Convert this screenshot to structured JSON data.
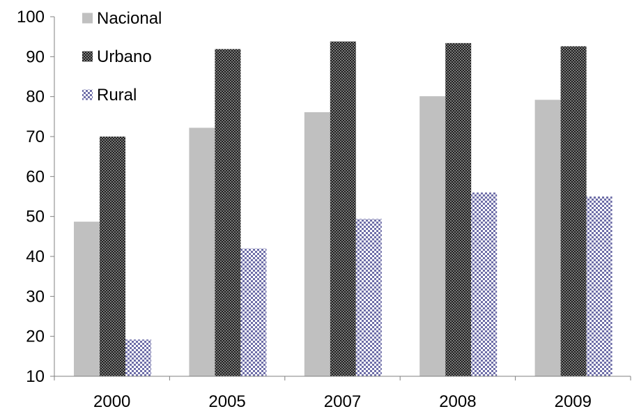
{
  "chart_data": {
    "type": "bar",
    "title": "",
    "xlabel": "",
    "ylabel": "",
    "categories": [
      "2000",
      "2005",
      "2007",
      "2008",
      "2009"
    ],
    "ylim": [
      10,
      100
    ],
    "yticks": [
      10,
      20,
      30,
      40,
      50,
      60,
      70,
      80,
      90,
      100
    ],
    "grid": false,
    "legend_position": "top-left",
    "series": [
      {
        "name": "Nacional",
        "values": [
          48.7,
          72.2,
          76.1,
          80.1,
          79.2
        ],
        "color": "#c0c0c0",
        "pattern": "solid"
      },
      {
        "name": "Urbano",
        "values": [
          70.0,
          91.9,
          93.8,
          93.4,
          92.6
        ],
        "color": "#404040",
        "pattern": "dense-check"
      },
      {
        "name": "Rural",
        "values": [
          19.2,
          42.0,
          49.4,
          56.0,
          55.0
        ],
        "color": "#7f7fb2",
        "pattern": "check"
      }
    ]
  }
}
